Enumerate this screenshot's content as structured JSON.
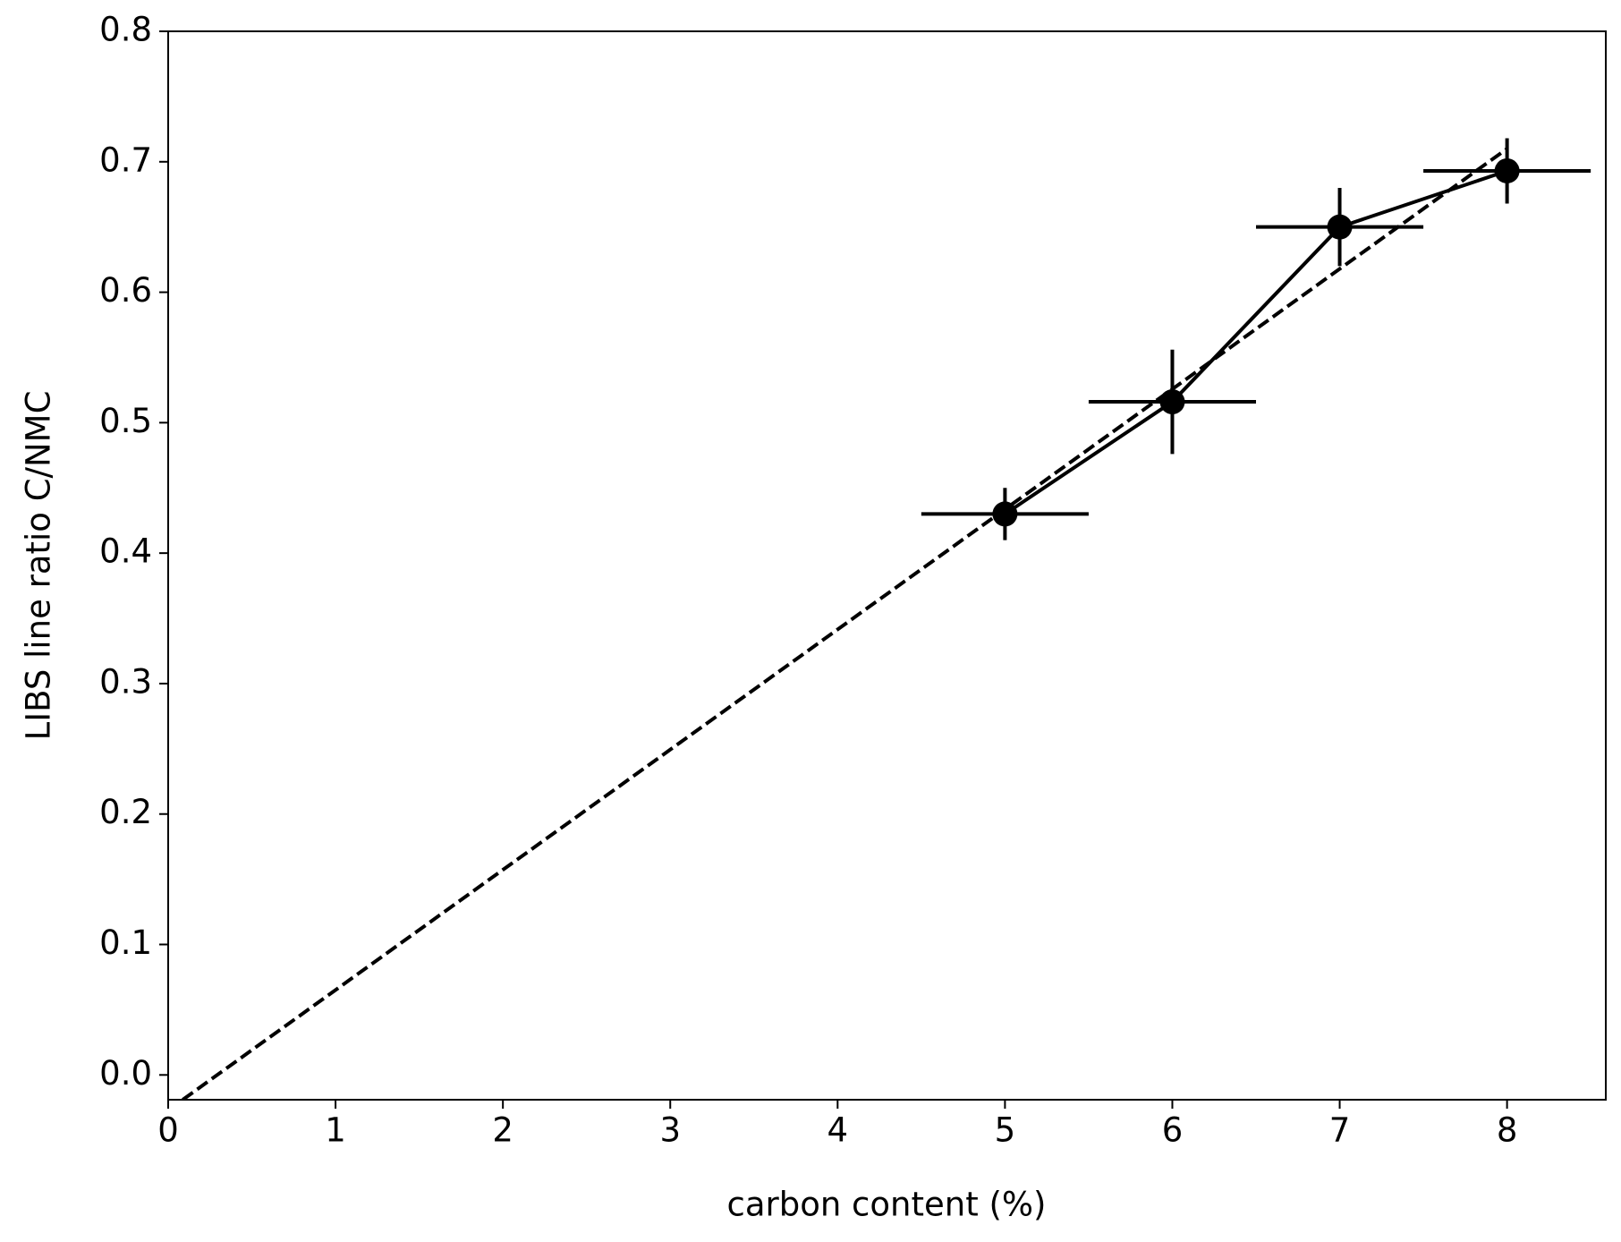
{
  "chart_data": {
    "type": "errorbar",
    "x_label": "carbon content (%)",
    "y_label": "LIBS line ratio C/NMC",
    "xlim": [
      0,
      8.59
    ],
    "ylim": [
      -0.019,
      0.8
    ],
    "xticks": [
      0,
      1,
      2,
      3,
      4,
      5,
      6,
      7,
      8
    ],
    "yticks": [
      {
        "value": 0,
        "label": "0.0"
      },
      0.1,
      0.2,
      0.3,
      0.4,
      0.5,
      0.6,
      0.7,
      0.8
    ],
    "series": [
      {
        "color": "#000000",
        "x": [
          5,
          6,
          7,
          8
        ],
        "values": [
          0.43,
          0.516,
          0.65,
          0.693
        ],
        "xerr": [
          0.5,
          0.5,
          0.5,
          0.5
        ],
        "yerr": [
          0.02,
          0.04,
          0.03,
          0.025
        ]
      }
    ],
    "fit": {
      "color": "#000000",
      "x": [
        0,
        8
      ],
      "values": [
        -0.027,
        0.71
      ]
    }
  }
}
